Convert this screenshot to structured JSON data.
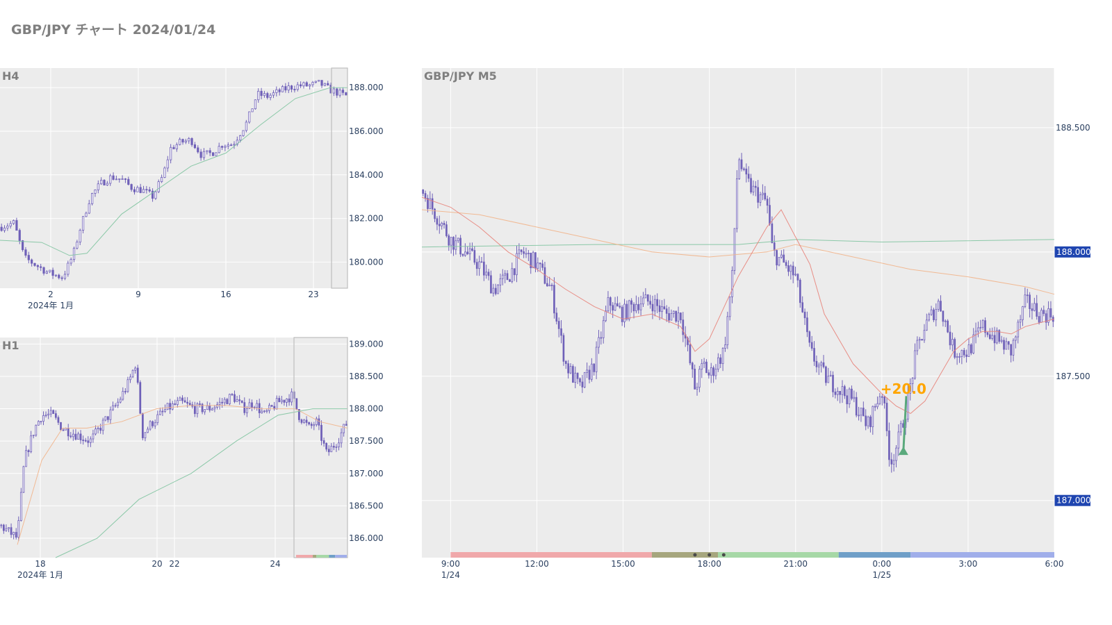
{
  "title": "GBP/JPY チャート 2024/01/24",
  "colors": {
    "plot_bg": "#ececec",
    "grid": "#ffffff",
    "candle": "#6f60b8",
    "ma_green": "#7fc4a0",
    "ma_orange": "#f2b48a",
    "ma_red": "#e8837a",
    "badge": "#1f45b0",
    "annotation": "#ffa500",
    "arrow": "#5aa97c",
    "session_1": "#f0a8aa",
    "session_2": "#a6a67e",
    "session_3": "#a6d8a6",
    "session_4": "#6f9fc8",
    "session_5": "#a0aeea"
  },
  "chart_data": [
    {
      "type": "candlestick",
      "title": "H4",
      "y_ticks": [
        "188.000",
        "186.000",
        "184.000",
        "182.000",
        "180.000"
      ],
      "ylim": [
        178.8,
        188.9
      ],
      "x_ticks": [
        "2",
        "9",
        "16",
        "23"
      ],
      "x_date_label": "2024年 1月",
      "close_path": [
        [
          0,
          181.6
        ],
        [
          0.04,
          181.8
        ],
        [
          0.07,
          180.2
        ],
        [
          0.11,
          179.8
        ],
        [
          0.14,
          179.5
        ],
        [
          0.18,
          179.3
        ],
        [
          0.21,
          180.3
        ],
        [
          0.23,
          181.5
        ],
        [
          0.26,
          183.0
        ],
        [
          0.29,
          183.6
        ],
        [
          0.32,
          183.9
        ],
        [
          0.35,
          183.8
        ],
        [
          0.38,
          183.4
        ],
        [
          0.41,
          183.3
        ],
        [
          0.44,
          183.0
        ],
        [
          0.47,
          184.0
        ],
        [
          0.49,
          185.2
        ],
        [
          0.52,
          185.5
        ],
        [
          0.55,
          185.6
        ],
        [
          0.58,
          184.9
        ],
        [
          0.61,
          185.0
        ],
        [
          0.64,
          185.4
        ],
        [
          0.67,
          185.4
        ],
        [
          0.71,
          186.4
        ],
        [
          0.74,
          187.7
        ],
        [
          0.77,
          187.6
        ],
        [
          0.8,
          187.8
        ],
        [
          0.83,
          188.0
        ],
        [
          0.86,
          188.1
        ],
        [
          0.89,
          188.1
        ],
        [
          0.92,
          188.2
        ],
        [
          0.95,
          187.9
        ],
        [
          1,
          187.6
        ]
      ],
      "ma": [
        {
          "color_key": "ma_green",
          "points": [
            [
              0,
              181.0
            ],
            [
              0.12,
              180.9
            ],
            [
              0.2,
              180.3
            ],
            [
              0.25,
              180.4
            ],
            [
              0.35,
              182.2
            ],
            [
              0.45,
              183.3
            ],
            [
              0.55,
              184.4
            ],
            [
              0.65,
              185.0
            ],
            [
              0.75,
              186.3
            ],
            [
              0.85,
              187.5
            ],
            [
              0.95,
              188.0
            ],
            [
              1,
              188.0
            ]
          ]
        }
      ],
      "highlight_from": 0.954
    },
    {
      "type": "candlestick",
      "title": "H1",
      "y_ticks": [
        "189.000",
        "188.500",
        "188.000",
        "187.500",
        "187.000",
        "186.500",
        "186.000"
      ],
      "ylim": [
        185.7,
        189.1
      ],
      "x_ticks": [
        "18",
        "20",
        "22",
        "24"
      ],
      "x_date_label": "2024年 1月",
      "close_path": [
        [
          0,
          186.2
        ],
        [
          0.05,
          186.0
        ],
        [
          0.07,
          187.2
        ],
        [
          0.1,
          187.7
        ],
        [
          0.12,
          187.9
        ],
        [
          0.15,
          187.9
        ],
        [
          0.18,
          187.7
        ],
        [
          0.22,
          187.6
        ],
        [
          0.26,
          187.5
        ],
        [
          0.3,
          187.8
        ],
        [
          0.34,
          188.1
        ],
        [
          0.37,
          188.4
        ],
        [
          0.39,
          188.7
        ],
        [
          0.41,
          187.6
        ],
        [
          0.44,
          187.8
        ],
        [
          0.48,
          188.0
        ],
        [
          0.52,
          188.1
        ],
        [
          0.56,
          188.0
        ],
        [
          0.6,
          188.0
        ],
        [
          0.64,
          188.1
        ],
        [
          0.67,
          188.2
        ],
        [
          0.7,
          188.0
        ],
        [
          0.73,
          188.1
        ],
        [
          0.76,
          187.9
        ],
        [
          0.8,
          188.1
        ],
        [
          0.84,
          188.2
        ],
        [
          0.86,
          187.9
        ],
        [
          0.89,
          187.7
        ],
        [
          0.91,
          187.8
        ],
        [
          0.94,
          187.3
        ],
        [
          0.97,
          187.5
        ],
        [
          1,
          187.8
        ]
      ],
      "ma": [
        {
          "color_key": "ma_orange",
          "points": [
            [
              0.05,
              185.9
            ],
            [
              0.12,
              187.2
            ],
            [
              0.18,
              187.7
            ],
            [
              0.25,
              187.7
            ],
            [
              0.35,
              187.8
            ],
            [
              0.45,
              188.0
            ],
            [
              0.55,
              188.05
            ],
            [
              0.65,
              188.05
            ],
            [
              0.75,
              188.0
            ],
            [
              0.85,
              188.0
            ],
            [
              0.92,
              187.8
            ],
            [
              1,
              187.7
            ]
          ]
        },
        {
          "color_key": "ma_green",
          "points": [
            [
              0.16,
              185.7
            ],
            [
              0.28,
              186.0
            ],
            [
              0.4,
              186.6
            ],
            [
              0.55,
              187.0
            ],
            [
              0.68,
              187.5
            ],
            [
              0.8,
              187.9
            ],
            [
              0.9,
              188.0
            ],
            [
              1,
              188.0
            ]
          ]
        }
      ],
      "highlight_from": 0.846,
      "session_bar": true
    },
    {
      "type": "candlestick",
      "title": "GBP/JPY M5",
      "y_ticks": [
        "188.500",
        "188.000",
        "187.500",
        "187.000"
      ],
      "ylim": [
        186.77,
        188.74
      ],
      "badges": [
        "188.000",
        "187.000"
      ],
      "x_ticks": [
        "9:00",
        "12:00",
        "15:00",
        "18:00",
        "21:00",
        "0:00",
        "3:00",
        "6:00"
      ],
      "x_date_labels": [
        {
          "tick": "9:00",
          "label": "1/24"
        },
        {
          "tick": "0:00",
          "label": "1/25"
        }
      ],
      "x_range_hours": [
        8.0,
        30.0
      ],
      "close_path": [
        [
          8.0,
          188.25
        ],
        [
          8.5,
          188.15
        ],
        [
          9.0,
          188.05
        ],
        [
          10.0,
          187.95
        ],
        [
          10.5,
          187.85
        ],
        [
          11.0,
          187.9
        ],
        [
          11.5,
          188.0
        ],
        [
          12.0,
          187.95
        ],
        [
          12.5,
          187.85
        ],
        [
          13.0,
          187.55
        ],
        [
          13.5,
          187.45
        ],
        [
          14.0,
          187.55
        ],
        [
          14.5,
          187.8
        ],
        [
          15.0,
          187.75
        ],
        [
          15.5,
          187.8
        ],
        [
          16.0,
          187.8
        ],
        [
          16.5,
          187.75
        ],
        [
          17.0,
          187.75
        ],
        [
          17.5,
          187.45
        ],
        [
          17.8,
          187.55
        ],
        [
          18.0,
          187.5
        ],
        [
          18.5,
          187.6
        ],
        [
          18.8,
          187.9
        ],
        [
          19.0,
          188.4
        ],
        [
          19.2,
          188.3
        ],
        [
          19.5,
          188.25
        ],
        [
          20.0,
          188.2
        ],
        [
          20.2,
          188.0
        ],
        [
          21.0,
          187.9
        ],
        [
          21.5,
          187.6
        ],
        [
          22.0,
          187.5
        ],
        [
          22.5,
          187.45
        ],
        [
          23.0,
          187.4
        ],
        [
          23.5,
          187.3
        ],
        [
          24.0,
          187.45
        ],
        [
          24.3,
          187.15
        ],
        [
          24.6,
          187.25
        ],
        [
          24.9,
          187.4
        ],
        [
          25.2,
          187.6
        ],
        [
          25.5,
          187.7
        ],
        [
          26.0,
          187.8
        ],
        [
          26.5,
          187.6
        ],
        [
          27.0,
          187.6
        ],
        [
          27.5,
          187.7
        ],
        [
          28.0,
          187.65
        ],
        [
          28.5,
          187.6
        ],
        [
          29.0,
          187.8
        ],
        [
          29.5,
          187.75
        ],
        [
          30.0,
          187.75
        ]
      ],
      "ma": [
        {
          "color_key": "ma_green",
          "points": [
            [
              8.0,
              188.02
            ],
            [
              14.0,
              188.03
            ],
            [
              19.0,
              188.03
            ],
            [
              21.0,
              188.05
            ],
            [
              24.0,
              188.04
            ],
            [
              30.0,
              188.05
            ]
          ]
        },
        {
          "color_key": "ma_orange",
          "points": [
            [
              8.0,
              188.17
            ],
            [
              10.0,
              188.15
            ],
            [
              12.0,
              188.1
            ],
            [
              14.0,
              188.05
            ],
            [
              16.0,
              188.0
            ],
            [
              18.0,
              187.98
            ],
            [
              20.0,
              188.0
            ],
            [
              21.0,
              188.03
            ],
            [
              23.0,
              187.98
            ],
            [
              25.0,
              187.93
            ],
            [
              27.0,
              187.9
            ],
            [
              29.0,
              187.86
            ],
            [
              30.0,
              187.83
            ]
          ]
        },
        {
          "color_key": "ma_red",
          "points": [
            [
              8.0,
              188.22
            ],
            [
              9.0,
              188.18
            ],
            [
              10.0,
              188.1
            ],
            [
              11.0,
              188.0
            ],
            [
              12.0,
              187.93
            ],
            [
              13.0,
              187.85
            ],
            [
              14.0,
              187.78
            ],
            [
              15.0,
              187.73
            ],
            [
              16.0,
              187.75
            ],
            [
              17.0,
              187.7
            ],
            [
              17.5,
              187.6
            ],
            [
              18.0,
              187.65
            ],
            [
              19.0,
              187.9
            ],
            [
              20.0,
              188.1
            ],
            [
              20.5,
              188.17
            ],
            [
              21.5,
              187.95
            ],
            [
              22.0,
              187.75
            ],
            [
              23.0,
              187.55
            ],
            [
              24.0,
              187.43
            ],
            [
              24.5,
              187.38
            ],
            [
              25.0,
              187.35
            ],
            [
              25.5,
              187.4
            ],
            [
              26.0,
              187.5
            ],
            [
              26.5,
              187.6
            ],
            [
              27.0,
              187.65
            ],
            [
              27.5,
              187.68
            ],
            [
              28.0,
              187.68
            ],
            [
              28.5,
              187.67
            ],
            [
              29.0,
              187.7
            ],
            [
              30.0,
              187.73
            ]
          ]
        }
      ],
      "annotation": {
        "text": "+20.0",
        "x_hours": 24.75,
        "y": 187.43
      },
      "trade_arrow": {
        "from_hours": 24.75,
        "from": 187.2,
        "to_hours": 24.85,
        "to": 187.42
      },
      "sessions": [
        {
          "from_hours": 9.0,
          "to_hours": 16.0,
          "color_key": "session_1"
        },
        {
          "from_hours": 16.0,
          "to_hours": 18.3,
          "color_key": "session_2"
        },
        {
          "from_hours": 18.3,
          "to_hours": 22.5,
          "color_key": "session_3"
        },
        {
          "from_hours": 22.5,
          "to_hours": 25.0,
          "color_key": "session_4"
        },
        {
          "from_hours": 25.0,
          "to_hours": 30.0,
          "color_key": "session_5"
        }
      ],
      "session_dots_hours": [
        17.5,
        18.0,
        18.5
      ]
    }
  ]
}
